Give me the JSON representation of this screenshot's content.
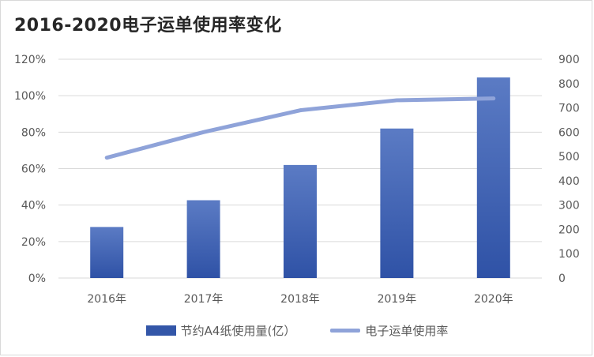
{
  "chart_data": {
    "type": "bar",
    "title": "2016-2020电子运单使用率变化",
    "categories": [
      "2016年",
      "2017年",
      "2018年",
      "2019年",
      "2020年"
    ],
    "series": [
      {
        "name": "节约A4纸使用量(亿）",
        "type": "bar",
        "axis": "right",
        "values": [
          210,
          320,
          465,
          615,
          825
        ]
      },
      {
        "name": "电子运单使用率",
        "type": "line",
        "axis": "left",
        "values": [
          66,
          80,
          92,
          97.5,
          98.5
        ]
      }
    ],
    "y_left": {
      "ticks": [
        "0%",
        "20%",
        "40%",
        "60%",
        "80%",
        "100%",
        "120%"
      ],
      "min": 0,
      "max": 120
    },
    "y_right": {
      "ticks": [
        "0",
        "100",
        "200",
        "300",
        "400",
        "500",
        "600",
        "700",
        "800",
        "900"
      ],
      "min": 0,
      "max": 900
    },
    "grid": true,
    "legend_position": "bottom",
    "colors": {
      "bar": "#3356a8",
      "bar_light": "#5b7bc4",
      "line": "#8fa3d9",
      "grid": "#d9d9d9"
    }
  }
}
